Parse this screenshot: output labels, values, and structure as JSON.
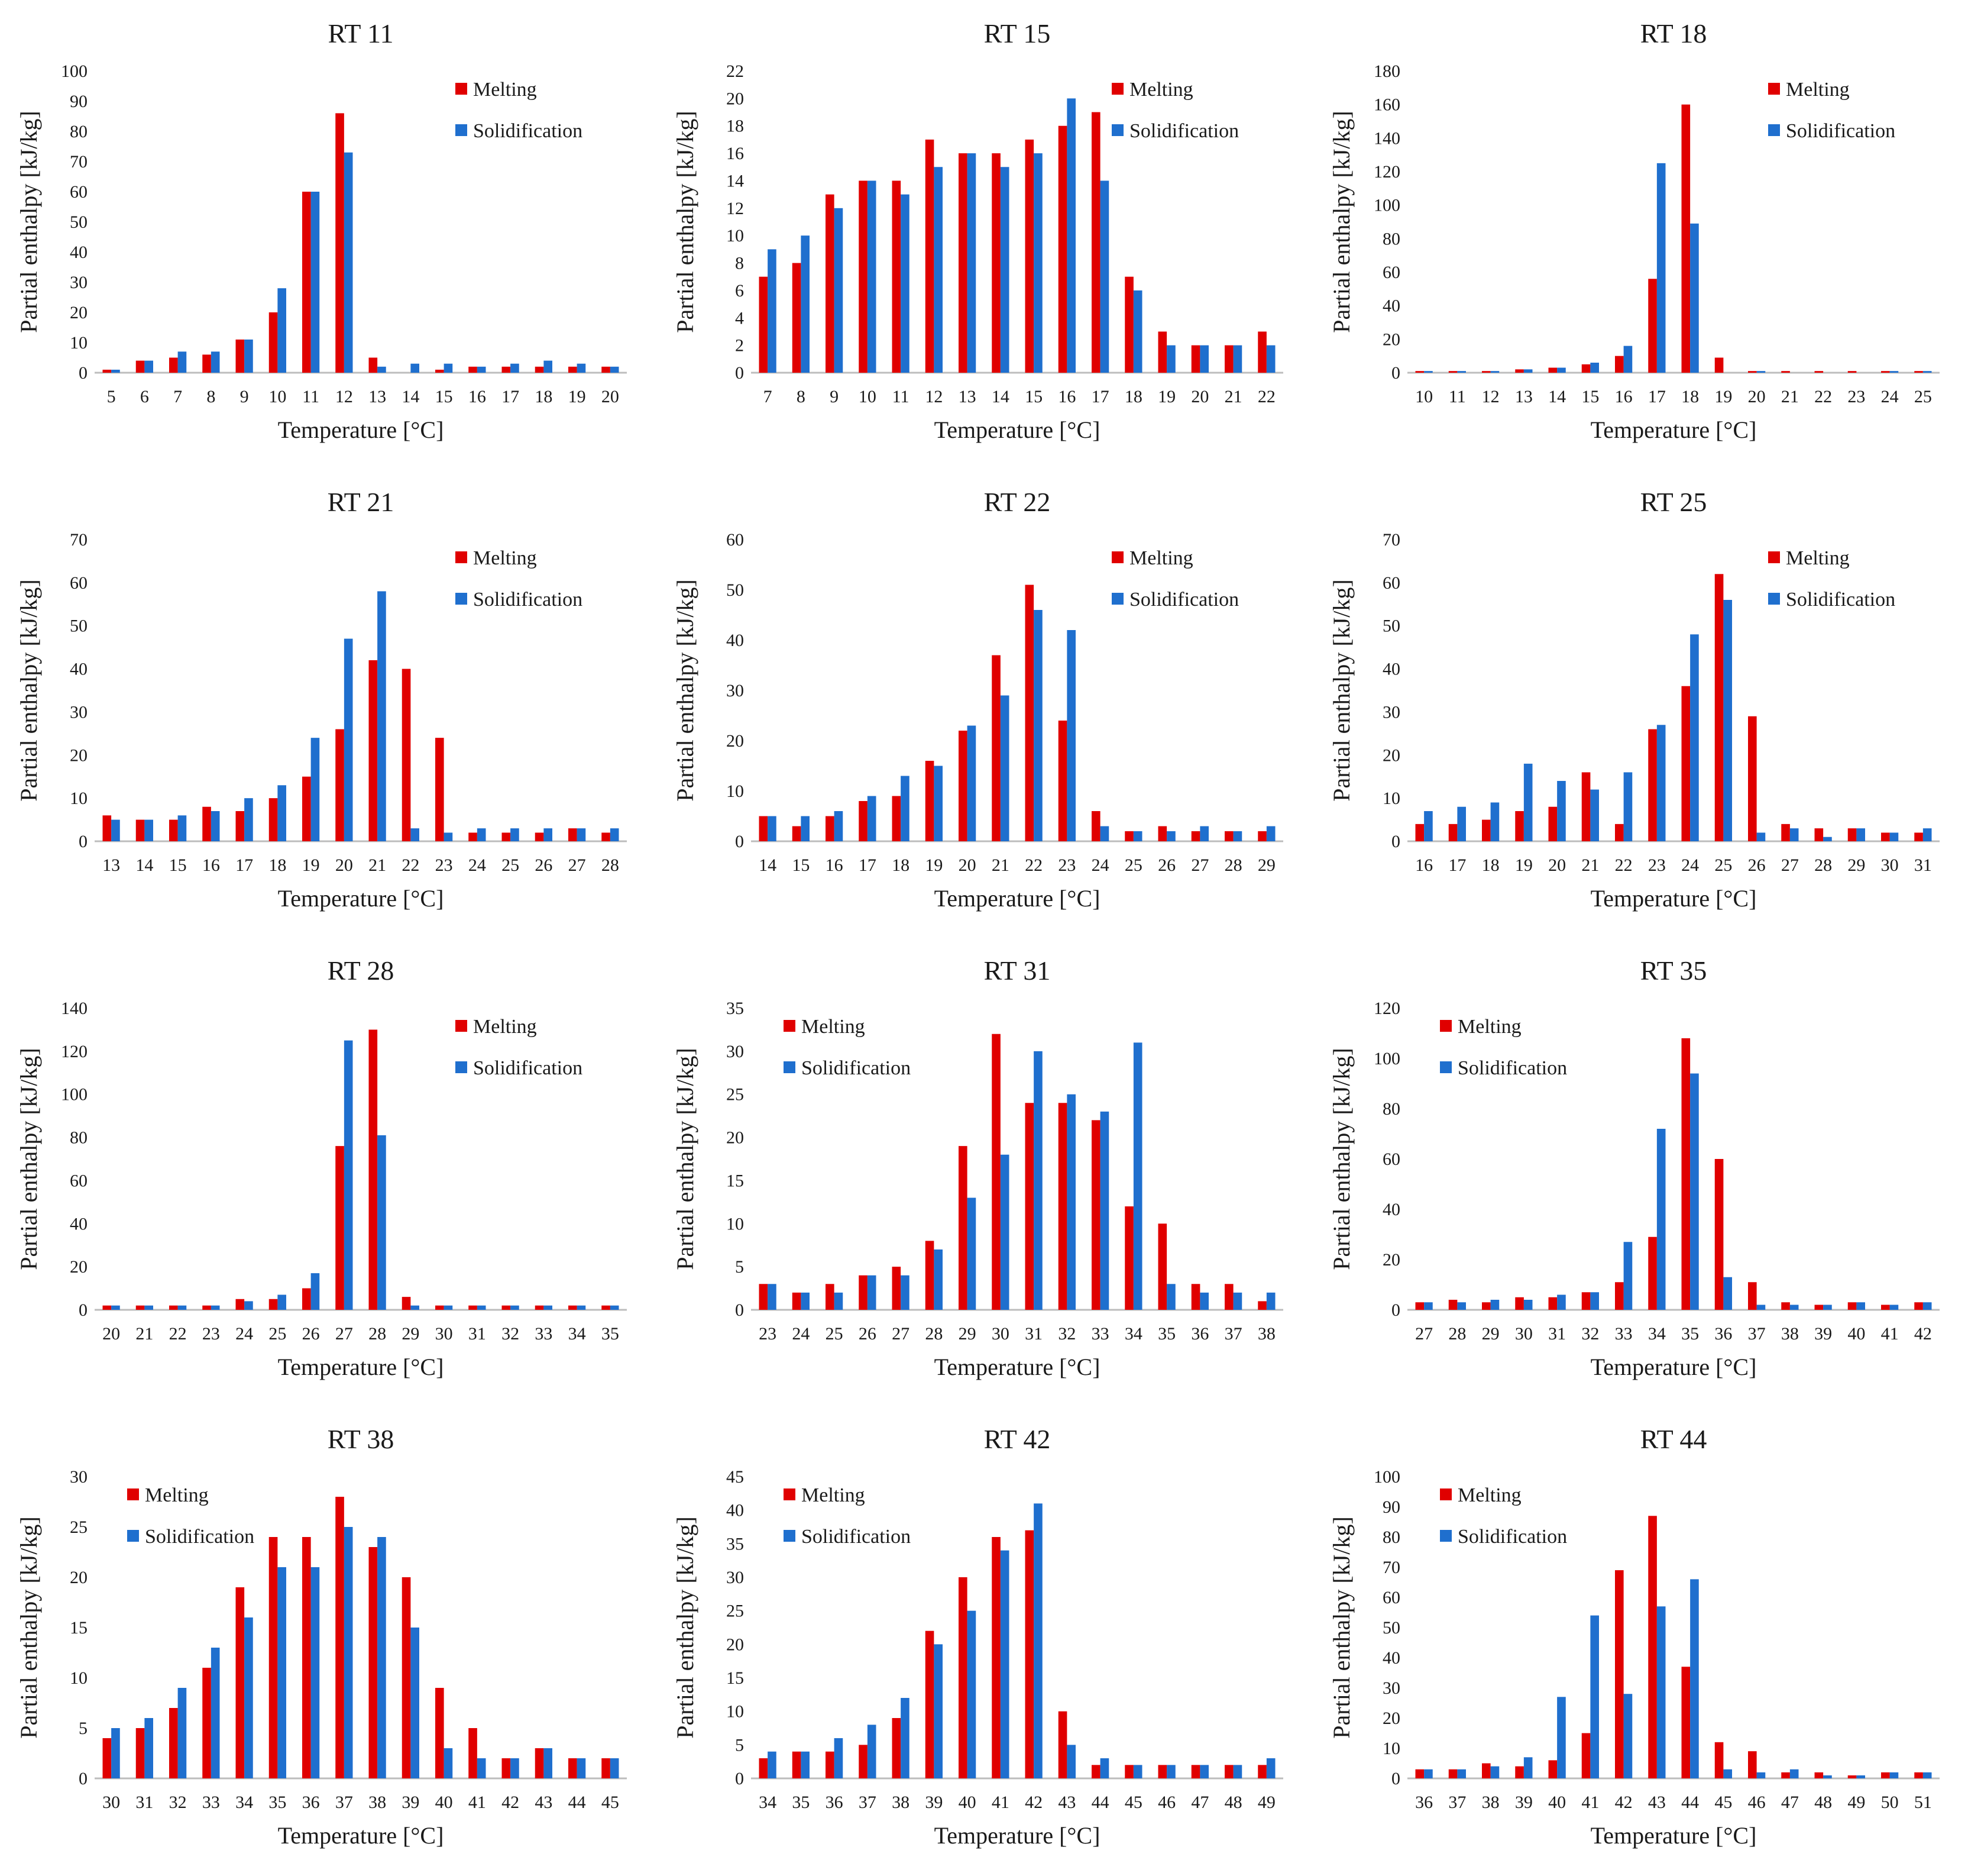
{
  "colors": {
    "melting": "#e00000",
    "solidification": "#1f6fce",
    "axis": "#bdbdbd"
  },
  "legend": {
    "melting": "Melting",
    "solidification": "Solidification"
  },
  "chart_data": [
    {
      "type": "bar",
      "title": "RT 11",
      "xlabel": "Temperature [°C]",
      "ylabel": "Partial enthalpy [kJ/kg]",
      "ylim": [
        0,
        100
      ],
      "ystep": 10,
      "legend_position": "top-right",
      "categories": [
        "5",
        "6",
        "7",
        "8",
        "9",
        "10",
        "11",
        "12",
        "13",
        "14",
        "15",
        "16",
        "17",
        "18",
        "19",
        "20"
      ],
      "series": [
        {
          "name": "Melting",
          "values": [
            1,
            4,
            5,
            6,
            11,
            20,
            60,
            86,
            5,
            0,
            1,
            2,
            2,
            2,
            2,
            2
          ]
        },
        {
          "name": "Solidification",
          "values": [
            1,
            4,
            7,
            7,
            11,
            28,
            60,
            73,
            2,
            3,
            3,
            2,
            3,
            4,
            3,
            2
          ]
        }
      ]
    },
    {
      "type": "bar",
      "title": "RT 15",
      "xlabel": "Temperature [°C]",
      "ylabel": "Partial enthalpy [kJ/kg]",
      "ylim": [
        0,
        22
      ],
      "ystep": 2,
      "legend_position": "top-right",
      "categories": [
        "7",
        "8",
        "9",
        "10",
        "11",
        "12",
        "13",
        "14",
        "15",
        "16",
        "17",
        "18",
        "19",
        "20",
        "21",
        "22"
      ],
      "series": [
        {
          "name": "Melting",
          "values": [
            7,
            8,
            13,
            14,
            14,
            17,
            16,
            16,
            17,
            18,
            19,
            7,
            3,
            2,
            2,
            3
          ]
        },
        {
          "name": "Solidification",
          "values": [
            9,
            10,
            12,
            14,
            13,
            15,
            16,
            15,
            16,
            20,
            14,
            6,
            2,
            2,
            2,
            2
          ]
        }
      ]
    },
    {
      "type": "bar",
      "title": "RT 18",
      "xlabel": "Temperature [°C]",
      "ylabel": "Partial enthalpy [kJ/kg]",
      "ylim": [
        0,
        180
      ],
      "ystep": 20,
      "legend_position": "top-right",
      "categories": [
        "10",
        "11",
        "12",
        "13",
        "14",
        "15",
        "16",
        "17",
        "18",
        "19",
        "20",
        "21",
        "22",
        "23",
        "24",
        "25"
      ],
      "series": [
        {
          "name": "Melting",
          "values": [
            1,
            1,
            1,
            2,
            3,
            5,
            10,
            56,
            160,
            9,
            1,
            1,
            1,
            1,
            1,
            1
          ]
        },
        {
          "name": "Solidification",
          "values": [
            1,
            1,
            1,
            2,
            3,
            6,
            16,
            125,
            89,
            0,
            1,
            0,
            0,
            0,
            1,
            1
          ]
        }
      ]
    },
    {
      "type": "bar",
      "title": "RT 21",
      "xlabel": "Temperature [°C]",
      "ylabel": "Partial enthalpy [kJ/kg]",
      "ylim": [
        0,
        70
      ],
      "ystep": 10,
      "legend_position": "top-right",
      "categories": [
        "13",
        "14",
        "15",
        "16",
        "17",
        "18",
        "19",
        "20",
        "21",
        "22",
        "23",
        "24",
        "25",
        "26",
        "27",
        "28"
      ],
      "series": [
        {
          "name": "Melting",
          "values": [
            6,
            5,
            5,
            8,
            7,
            10,
            15,
            26,
            42,
            40,
            24,
            2,
            2,
            2,
            3,
            2
          ]
        },
        {
          "name": "Solidification",
          "values": [
            5,
            5,
            6,
            7,
            10,
            13,
            24,
            47,
            58,
            3,
            2,
            3,
            3,
            3,
            3,
            3
          ]
        }
      ]
    },
    {
      "type": "bar",
      "title": "RT 22",
      "xlabel": "Temperature [°C]",
      "ylabel": "Partial enthalpy [kJ/kg]",
      "ylim": [
        0,
        60
      ],
      "ystep": 10,
      "legend_position": "top-right",
      "categories": [
        "14",
        "15",
        "16",
        "17",
        "18",
        "19",
        "20",
        "21",
        "22",
        "23",
        "24",
        "25",
        "26",
        "27",
        "28",
        "29"
      ],
      "series": [
        {
          "name": "Melting",
          "values": [
            5,
            3,
            5,
            8,
            9,
            16,
            22,
            37,
            51,
            24,
            6,
            2,
            3,
            2,
            2,
            2
          ]
        },
        {
          "name": "Solidification",
          "values": [
            5,
            5,
            6,
            9,
            13,
            15,
            23,
            29,
            46,
            42,
            3,
            2,
            2,
            3,
            2,
            3
          ]
        }
      ]
    },
    {
      "type": "bar",
      "title": "RT 25",
      "xlabel": "Temperature [°C]",
      "ylabel": "Partial enthalpy [kJ/kg]",
      "ylim": [
        0,
        70
      ],
      "ystep": 10,
      "legend_position": "top-right",
      "categories": [
        "16",
        "17",
        "18",
        "19",
        "20",
        "21",
        "22",
        "23",
        "24",
        "25",
        "26",
        "27",
        "28",
        "29",
        "30",
        "31"
      ],
      "series": [
        {
          "name": "Melting",
          "values": [
            4,
            4,
            5,
            7,
            8,
            16,
            4,
            26,
            36,
            62,
            29,
            4,
            3,
            3,
            2,
            2
          ]
        },
        {
          "name": "Solidification",
          "values": [
            7,
            8,
            9,
            18,
            14,
            12,
            16,
            27,
            48,
            56,
            2,
            3,
            1,
            3,
            2,
            3
          ]
        }
      ]
    },
    {
      "type": "bar",
      "title": "RT 28",
      "xlabel": "Temperature [°C]",
      "ylabel": "Partial enthalpy [kJ/kg]",
      "ylim": [
        0,
        140
      ],
      "ystep": 20,
      "legend_position": "top-right",
      "categories": [
        "20",
        "21",
        "22",
        "23",
        "24",
        "25",
        "26",
        "27",
        "28",
        "29",
        "30",
        "31",
        "32",
        "33",
        "34",
        "35"
      ],
      "series": [
        {
          "name": "Melting",
          "values": [
            2,
            2,
            2,
            2,
            5,
            5,
            10,
            76,
            130,
            6,
            2,
            2,
            2,
            2,
            2,
            2
          ]
        },
        {
          "name": "Solidification",
          "values": [
            2,
            2,
            2,
            2,
            4,
            7,
            17,
            125,
            81,
            2,
            2,
            2,
            2,
            2,
            2,
            2
          ]
        }
      ]
    },
    {
      "type": "bar",
      "title": "RT 31",
      "xlabel": "Temperature [°C]",
      "ylabel": "Partial enthalpy [kJ/kg]",
      "ylim": [
        0,
        35
      ],
      "ystep": 5,
      "legend_position": "top-left",
      "categories": [
        "23",
        "24",
        "25",
        "26",
        "27",
        "28",
        "29",
        "30",
        "31",
        "32",
        "33",
        "34",
        "35",
        "36",
        "37",
        "38"
      ],
      "series": [
        {
          "name": "Melting",
          "values": [
            3,
            2,
            3,
            4,
            5,
            8,
            19,
            32,
            24,
            24,
            22,
            12,
            10,
            3,
            3,
            1
          ]
        },
        {
          "name": "Solidification",
          "values": [
            3,
            2,
            2,
            4,
            4,
            7,
            13,
            18,
            30,
            25,
            23,
            31,
            3,
            2,
            2,
            2
          ]
        }
      ]
    },
    {
      "type": "bar",
      "title": "RT 35",
      "xlabel": "Temperature [°C]",
      "ylabel": "Partial enthalpy [kJ/kg]",
      "ylim": [
        0,
        120
      ],
      "ystep": 20,
      "legend_position": "top-left",
      "categories": [
        "27",
        "28",
        "29",
        "30",
        "31",
        "32",
        "33",
        "34",
        "35",
        "36",
        "37",
        "38",
        "39",
        "40",
        "41",
        "42"
      ],
      "series": [
        {
          "name": "Melting",
          "values": [
            3,
            4,
            3,
            5,
            5,
            7,
            11,
            29,
            108,
            60,
            11,
            3,
            2,
            3,
            2,
            3
          ]
        },
        {
          "name": "Solidification",
          "values": [
            3,
            3,
            4,
            4,
            6,
            7,
            27,
            72,
            94,
            13,
            2,
            2,
            2,
            3,
            2,
            3
          ]
        }
      ]
    },
    {
      "type": "bar",
      "title": "RT 38",
      "xlabel": "Temperature [°C]",
      "ylabel": "Partial enthalpy [kJ/kg]",
      "ylim": [
        0,
        30
      ],
      "ystep": 5,
      "legend_position": "top-left",
      "categories": [
        "30",
        "31",
        "32",
        "33",
        "34",
        "35",
        "36",
        "37",
        "38",
        "39",
        "40",
        "41",
        "42",
        "43",
        "44",
        "45"
      ],
      "series": [
        {
          "name": "Melting",
          "values": [
            4,
            5,
            7,
            11,
            19,
            24,
            24,
            28,
            23,
            20,
            9,
            5,
            2,
            3,
            2,
            2
          ]
        },
        {
          "name": "Solidification",
          "values": [
            5,
            6,
            9,
            13,
            16,
            21,
            21,
            25,
            24,
            15,
            3,
            2,
            2,
            3,
            2,
            2
          ]
        }
      ]
    },
    {
      "type": "bar",
      "title": "RT 42",
      "xlabel": "Temperature [°C]",
      "ylabel": "Partial enthalpy [kJ/kg]",
      "ylim": [
        0,
        45
      ],
      "ystep": 5,
      "legend_position": "top-left",
      "categories": [
        "34",
        "35",
        "36",
        "37",
        "38",
        "39",
        "40",
        "41",
        "42",
        "43",
        "44",
        "45",
        "46",
        "47",
        "48",
        "49"
      ],
      "series": [
        {
          "name": "Melting",
          "values": [
            3,
            4,
            4,
            5,
            9,
            22,
            30,
            36,
            37,
            10,
            2,
            2,
            2,
            2,
            2,
            2
          ]
        },
        {
          "name": "Solidification",
          "values": [
            4,
            4,
            6,
            8,
            12,
            20,
            25,
            34,
            41,
            5,
            3,
            2,
            2,
            2,
            2,
            3
          ]
        }
      ]
    },
    {
      "type": "bar",
      "title": "RT 44",
      "xlabel": "Temperature [°C]",
      "ylabel": "Partial enthalpy [kJ/kg]",
      "ylim": [
        0,
        100
      ],
      "ystep": 10,
      "legend_position": "top-left",
      "categories": [
        "36",
        "37",
        "38",
        "39",
        "40",
        "41",
        "42",
        "43",
        "44",
        "45",
        "46",
        "47",
        "48",
        "49",
        "50",
        "51"
      ],
      "series": [
        {
          "name": "Melting",
          "values": [
            3,
            3,
            5,
            4,
            6,
            15,
            69,
            87,
            37,
            12,
            9,
            2,
            2,
            1,
            2,
            2
          ]
        },
        {
          "name": "Solidification",
          "values": [
            3,
            3,
            4,
            7,
            27,
            54,
            28,
            57,
            66,
            3,
            2,
            3,
            1,
            1,
            2,
            2
          ]
        }
      ]
    }
  ]
}
